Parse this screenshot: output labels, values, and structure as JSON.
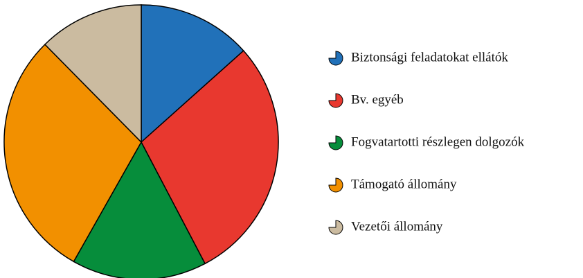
{
  "chart_data": {
    "type": "pie",
    "categories": [
      "Biztonsági feladatokat ellátók",
      "Bv. egyéb",
      "Fogvatartotti részlegen dolgozók",
      "Támogató állomány",
      "Vezetői állomány"
    ],
    "values": [
      13.4,
      28.9,
      15.9,
      29.4,
      12.4
    ],
    "colors": [
      "#2171b9",
      "#e8382f",
      "#068d3b",
      "#f29000",
      "#cbbba0"
    ],
    "legend": "right"
  }
}
